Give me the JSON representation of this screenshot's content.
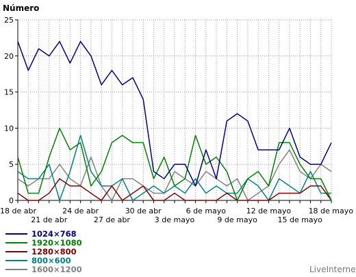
{
  "chart_data": {
    "type": "line",
    "ylabel": "Número",
    "ylim": [
      0,
      25
    ],
    "yticks": [
      0,
      5,
      10,
      15,
      20,
      25
    ],
    "grid": true,
    "legend_placement": "bottom-left",
    "x_count": 31,
    "x_labels_row1": [
      "18 de abr",
      "24 de abr",
      "30 de abr",
      "6 de mayo",
      "12 de mayo",
      "18 de mayo"
    ],
    "x_labels_row1_index": [
      0,
      6,
      12,
      18,
      24,
      30
    ],
    "x_labels_row2": [
      "21 de abr",
      "27 de abr",
      "3 de mayo",
      "9 de mayo",
      "15 de mayo"
    ],
    "x_labels_row2_index": [
      3,
      9,
      15,
      21,
      27
    ],
    "series": [
      {
        "name": "1024×768",
        "color": "#000080",
        "values": [
          22,
          18,
          21,
          20,
          22,
          19,
          22,
          20,
          16,
          18,
          16,
          17,
          14,
          4,
          3,
          5,
          5,
          2,
          7,
          3,
          11,
          12,
          11,
          7,
          7,
          7,
          10,
          6,
          5,
          5,
          8
        ]
      },
      {
        "name": "1920×1080",
        "color": "#008000",
        "values": [
          6,
          1,
          1,
          6,
          10,
          7,
          8,
          2,
          4,
          8,
          9,
          8,
          8,
          3,
          6,
          2,
          3,
          9,
          5,
          6,
          4,
          0,
          3,
          4,
          2,
          8,
          8,
          5,
          3,
          3,
          0
        ]
      },
      {
        "name": "1280×800",
        "color": "#800000",
        "values": [
          1,
          0,
          0,
          1,
          3,
          2,
          2,
          1,
          0,
          2,
          0,
          1,
          2,
          0,
          0,
          1,
          0,
          0,
          0,
          0,
          1,
          0,
          0,
          0,
          0,
          1,
          1,
          1,
          2,
          2,
          0
        ]
      },
      {
        "name": "800×600",
        "color": "#008080",
        "values": [
          4,
          3,
          3,
          5,
          0,
          4,
          9,
          4,
          2,
          2,
          3,
          0,
          1,
          2,
          1,
          2,
          1,
          3,
          1,
          2,
          1,
          1,
          3,
          2,
          0,
          3,
          2,
          1,
          4,
          1,
          1
        ]
      },
      {
        "name": "1600×1200",
        "color": "#808080",
        "values": [
          3,
          2,
          3,
          3,
          5,
          3,
          2,
          6,
          2,
          0,
          3,
          3,
          2,
          1,
          1,
          4,
          3,
          2,
          4,
          3,
          2,
          3,
          0,
          1,
          2,
          5,
          7,
          4,
          3,
          5,
          4
        ]
      }
    ]
  },
  "brand_label": "LiveInternet"
}
